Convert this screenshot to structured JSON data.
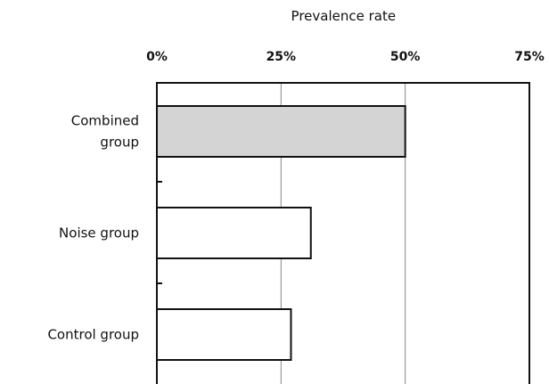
{
  "chart_data": {
    "type": "bar",
    "orientation": "horizontal",
    "xlabel": "Prevalence rate",
    "xaxis_position": "top",
    "xlim": [
      0,
      75
    ],
    "xticks": [
      {
        "value": 0,
        "label": "0%"
      },
      {
        "value": 25,
        "label": "25%"
      },
      {
        "value": 50,
        "label": "50%"
      },
      {
        "value": 75,
        "label": "75%"
      }
    ],
    "grid": true,
    "categories": [
      [
        "Combined",
        "group"
      ],
      [
        "Noise group"
      ],
      [
        "Control group"
      ]
    ],
    "values": [
      50,
      31,
      27
    ],
    "bar_colors": [
      "#d4d4d4",
      "#ffffff",
      "#ffffff"
    ],
    "bar_stroke": "#111111",
    "grid_color": "#888888",
    "axis_color": "#111111"
  }
}
